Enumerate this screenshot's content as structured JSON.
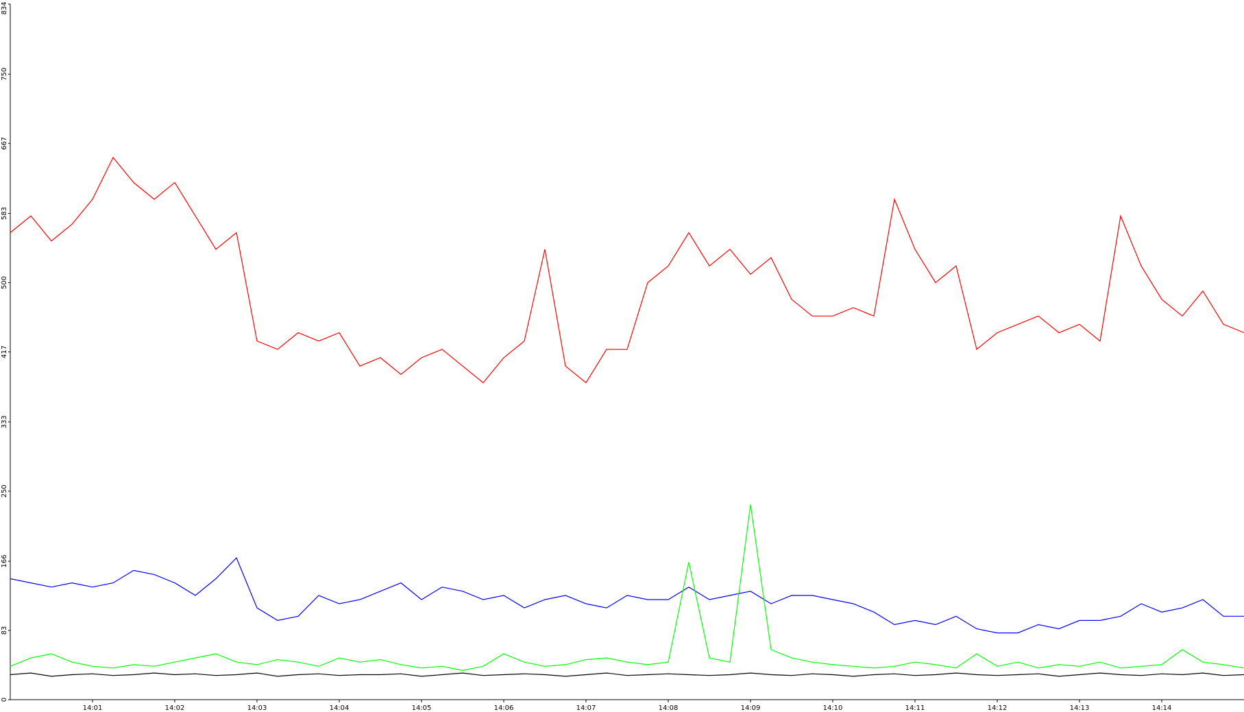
{
  "chart_data": {
    "type": "line",
    "x": [
      0,
      15,
      30,
      45,
      60,
      75,
      90,
      105,
      120,
      135,
      150,
      165,
      180,
      195,
      210,
      225,
      240,
      255,
      270,
      285,
      300,
      315,
      330,
      345,
      360,
      375,
      390,
      405,
      420,
      435,
      450,
      465,
      480,
      495,
      510,
      525,
      540,
      555,
      570,
      585,
      600,
      615,
      630,
      645,
      660,
      675,
      690,
      705,
      720,
      735,
      750,
      765,
      780,
      795,
      810,
      825,
      840,
      855,
      870,
      885,
      900
    ],
    "xlim": [
      0,
      900
    ],
    "xticks": [
      {
        "value": 60,
        "label": "14:01"
      },
      {
        "value": 120,
        "label": "14:02"
      },
      {
        "value": 180,
        "label": "14:03"
      },
      {
        "value": 240,
        "label": "14:04"
      },
      {
        "value": 300,
        "label": "14:05"
      },
      {
        "value": 360,
        "label": "14:06"
      },
      {
        "value": 420,
        "label": "14:07"
      },
      {
        "value": 480,
        "label": "14:08"
      },
      {
        "value": 540,
        "label": "14:09"
      },
      {
        "value": 600,
        "label": "14:10"
      },
      {
        "value": 660,
        "label": "14:11"
      },
      {
        "value": 720,
        "label": "14:12"
      },
      {
        "value": 780,
        "label": "14:13"
      },
      {
        "value": 840,
        "label": "14:14"
      }
    ],
    "ylim": [
      0,
      834
    ],
    "yticks": [
      0,
      83,
      166,
      250,
      333,
      417,
      500,
      583,
      667,
      750,
      834
    ],
    "series": [
      {
        "color": "#ff0000",
        "values": [
          560,
          580,
          550,
          570,
          600,
          650,
          620,
          600,
          620,
          580,
          540,
          560,
          430,
          420,
          440,
          430,
          440,
          400,
          410,
          390,
          410,
          420,
          400,
          380,
          410,
          430,
          540,
          400,
          380,
          420,
          420,
          500,
          520,
          560,
          520,
          540,
          510,
          530,
          480,
          460,
          460,
          470,
          460,
          600,
          540,
          500,
          520,
          420,
          440,
          450,
          460,
          440,
          450,
          430,
          580,
          520,
          480,
          460,
          490,
          450,
          440
        ]
      },
      {
        "color": "#0000ff",
        "values": [
          145,
          140,
          135,
          140,
          135,
          140,
          155,
          150,
          140,
          125,
          145,
          170,
          110,
          95,
          100,
          125,
          115,
          120,
          130,
          140,
          120,
          135,
          130,
          120,
          125,
          110,
          120,
          125,
          115,
          110,
          125,
          120,
          120,
          135,
          120,
          125,
          130,
          115,
          125,
          125,
          120,
          115,
          105,
          90,
          95,
          90,
          100,
          85,
          80,
          80,
          90,
          85,
          95,
          95,
          100,
          115,
          105,
          110,
          120,
          100,
          100
        ]
      },
      {
        "color": "#00ff00",
        "values": [
          40,
          50,
          55,
          45,
          40,
          38,
          42,
          40,
          45,
          50,
          55,
          45,
          42,
          48,
          45,
          40,
          50,
          45,
          48,
          42,
          38,
          40,
          35,
          40,
          55,
          45,
          40,
          42,
          48,
          50,
          45,
          42,
          45,
          165,
          50,
          45,
          234,
          60,
          50,
          45,
          42,
          40,
          38,
          40,
          45,
          42,
          38,
          55,
          40,
          45,
          38,
          42,
          40,
          45,
          38,
          40,
          42,
          60,
          45,
          42,
          38
        ]
      },
      {
        "color": "#000000",
        "values": [
          30,
          32,
          28,
          30,
          31,
          29,
          30,
          32,
          30,
          31,
          29,
          30,
          32,
          28,
          30,
          31,
          29,
          30,
          30,
          31,
          28,
          30,
          32,
          29,
          30,
          31,
          30,
          28,
          30,
          32,
          29,
          30,
          31,
          30,
          29,
          30,
          32,
          30,
          29,
          31,
          30,
          28,
          30,
          31,
          29,
          30,
          32,
          30,
          29,
          30,
          31,
          28,
          30,
          32,
          30,
          29,
          31,
          30,
          32,
          29,
          30
        ]
      }
    ]
  }
}
